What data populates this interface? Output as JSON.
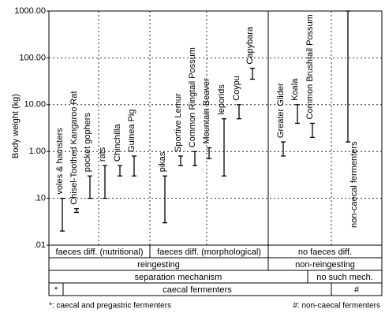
{
  "chart_data": {
    "type": "range",
    "y_label": "Body weight (kg)",
    "log_scale": true,
    "grid": true,
    "color": "#000000",
    "ylim": [
      0.01,
      1000
    ],
    "yticks": [
      {
        "value": 0.01,
        "label": ".01"
      },
      {
        "value": 0.1,
        "label": ".10"
      },
      {
        "value": 1,
        "label": "1.00"
      },
      {
        "value": 10,
        "label": "10.00"
      },
      {
        "value": 100,
        "label": "100.00"
      },
      {
        "value": 1000,
        "label": "1000.00"
      }
    ],
    "categories": [
      "voles & hamsters",
      "Chisel-Toothed Kangaroo Rat",
      "pocket gophers",
      "rats",
      "Chinchilla",
      "Guinea Pig",
      "pikas",
      "Sportive Lemur",
      "Common Ringtail Possum",
      "Mountain Beaver",
      "leporids",
      "Coypu",
      "Capybara",
      "Greater Glider",
      "Koala",
      "Common Brushtail Possum",
      "non-caecal fermenters"
    ],
    "low": [
      0.02,
      0.05,
      0.1,
      0.1,
      0.3,
      0.3,
      0.03,
      0.5,
      0.5,
      0.7,
      0.3,
      5,
      35,
      0.8,
      4,
      2,
      1.6
    ],
    "high": [
      0.1,
      0.06,
      0.3,
      0.5,
      0.5,
      0.8,
      0.3,
      0.8,
      1,
      1.2,
      5,
      10,
      60,
      1.6,
      10,
      4,
      1000
    ]
  },
  "table": {
    "rows": [
      [
        "faeces diff. (nutritional)",
        "faeces diff. (morphological)",
        "no faeces diff."
      ],
      [
        "reingesting",
        "non-reingesting"
      ],
      [
        "separation mechanism",
        "no such mech."
      ],
      [
        "*",
        "caecal fermenters",
        "#"
      ]
    ]
  },
  "footnotes": [
    "*: caecal and pregastric fermenters",
    "#: non-caecal fermenters"
  ]
}
